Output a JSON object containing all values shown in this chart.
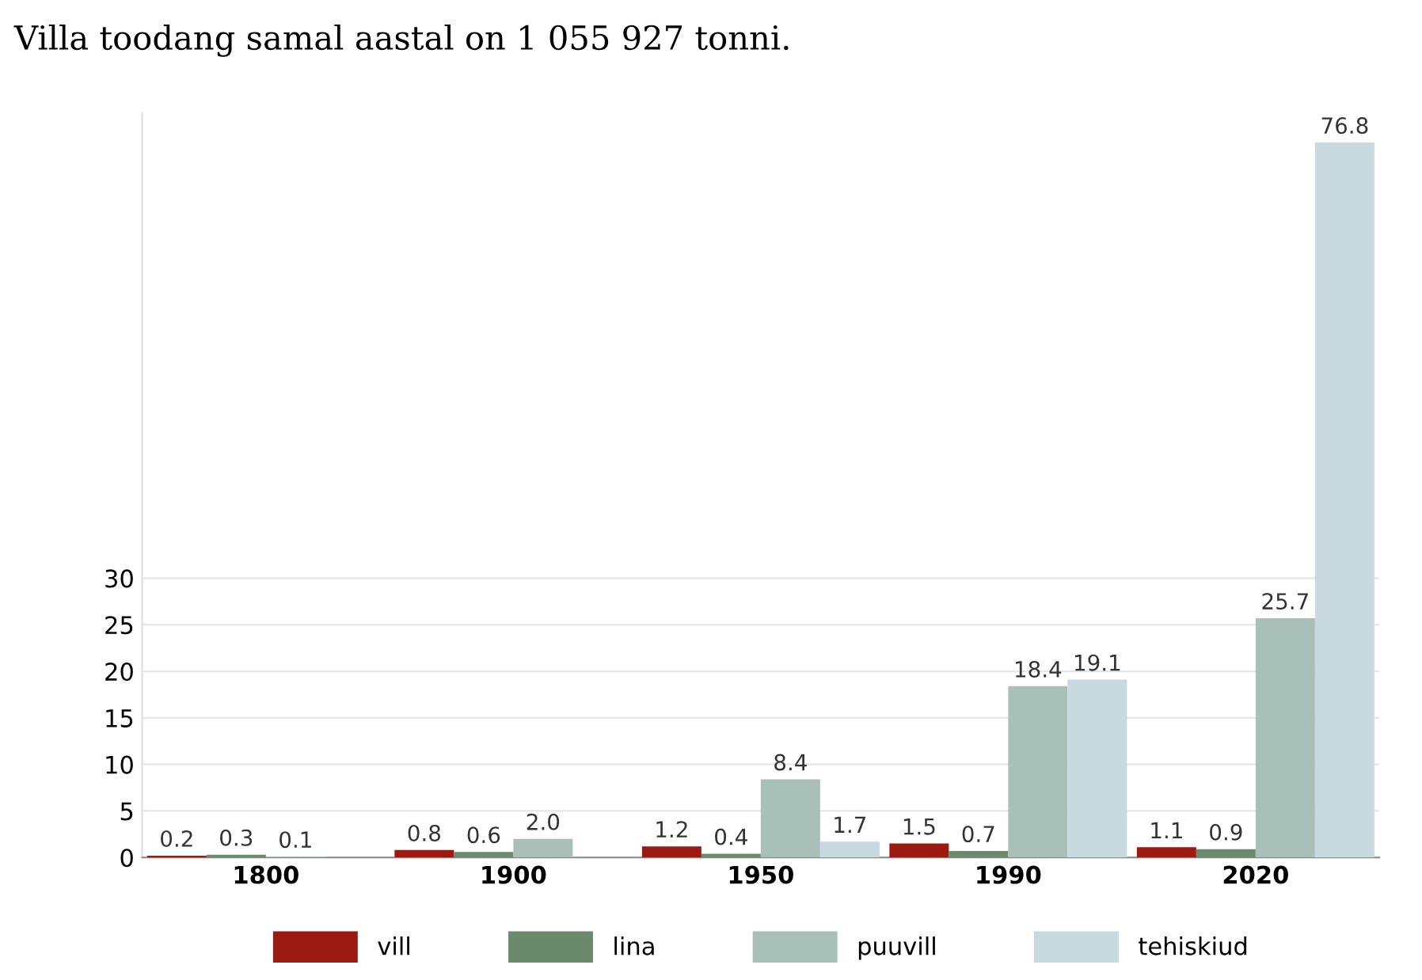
{
  "chart_data": {
    "type": "bar",
    "title": "Villa toodang samal aastal on 1 055 927 tonni.",
    "categories": [
      "1800",
      "1900",
      "1950",
      "1990",
      "2020"
    ],
    "series": [
      {
        "name": "vill",
        "color": "#9b1a12",
        "values": [
          0.2,
          0.8,
          1.2,
          1.5,
          1.1
        ],
        "value_labels": [
          "0.2",
          "0.8",
          "1.2",
          "1.5",
          "1.1"
        ]
      },
      {
        "name": "lina",
        "color": "#6b8a6b",
        "values": [
          0.3,
          0.6,
          0.4,
          0.7,
          0.9
        ],
        "value_labels": [
          "0.3",
          "0.6",
          "0.4",
          "0.7",
          "0.9"
        ]
      },
      {
        "name": "puuvill",
        "color": "#a9c0b8",
        "values": [
          0.1,
          2.0,
          8.4,
          18.4,
          25.7
        ],
        "value_labels": [
          "0.1",
          "2.0",
          "8.4",
          "18.4",
          "25.7"
        ]
      },
      {
        "name": "tehiskiud",
        "color": "#c8d9df",
        "values": [
          null,
          null,
          1.7,
          19.1,
          76.8
        ],
        "value_labels": [
          null,
          null,
          "1.7",
          "19.1",
          "76.8"
        ]
      }
    ],
    "ylim": [
      0,
      80
    ],
    "yticks": [
      0,
      5,
      10,
      15,
      20,
      25,
      30
    ],
    "grid": "y",
    "legend": "bottom"
  }
}
